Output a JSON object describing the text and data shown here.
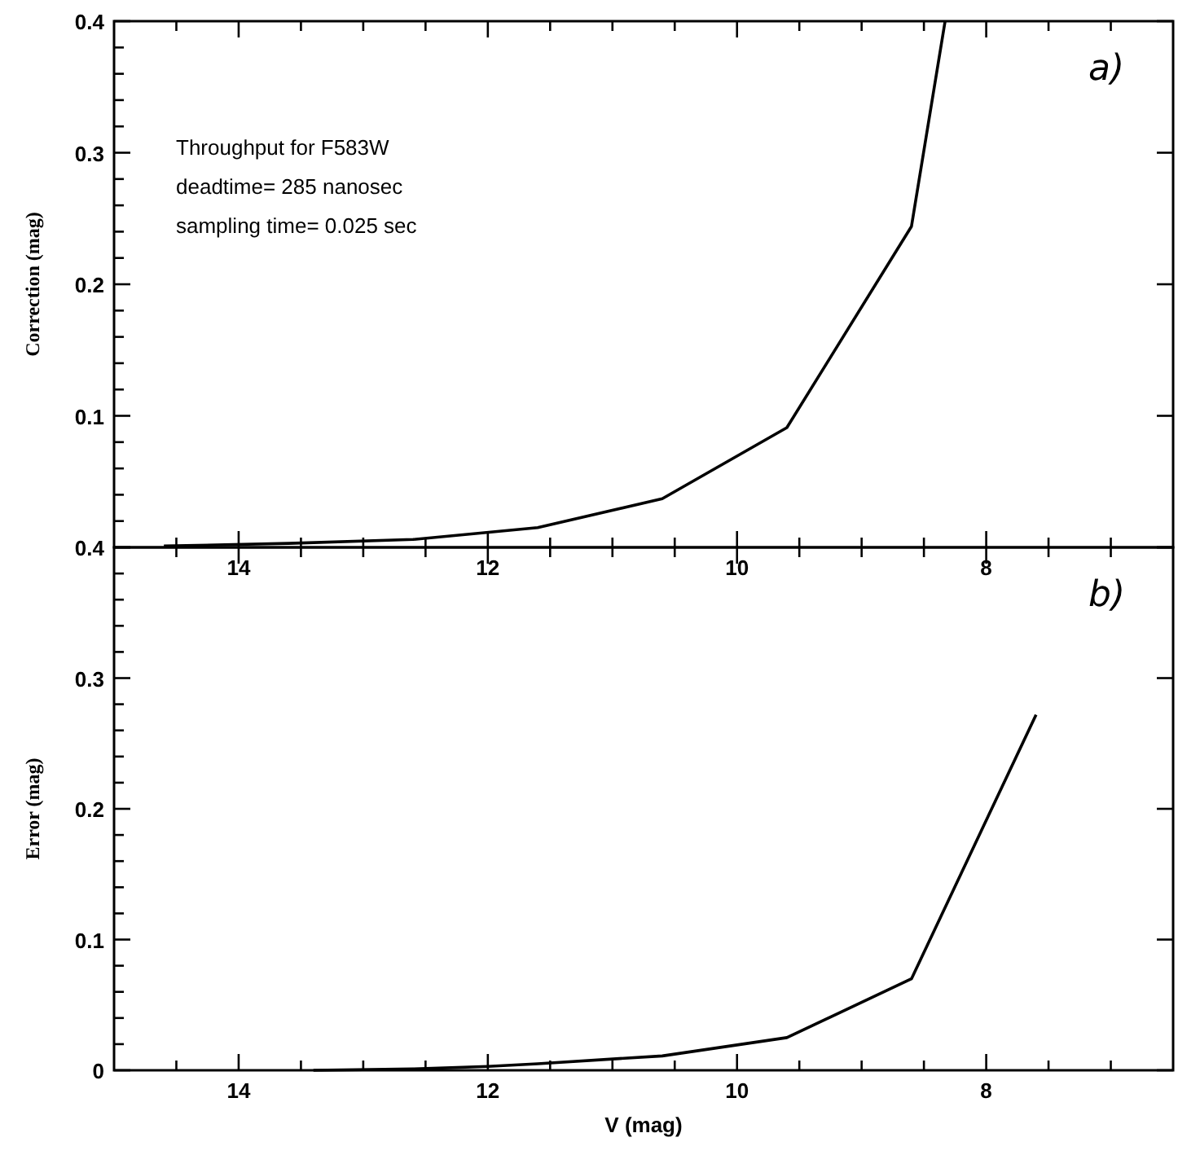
{
  "chart_data": [
    {
      "type": "line",
      "ylabel": "Correction (mag)",
      "xlim": [
        15,
        6.5
      ],
      "ylim": [
        0,
        0.4
      ],
      "xticks": [
        14,
        12,
        10,
        8,
        {
          "value": 14.5,
          "label": null
        },
        {
          "value": 13.5,
          "label": null
        },
        {
          "value": 13,
          "label": null
        },
        {
          "value": 12.5,
          "label": null
        },
        {
          "value": 11.5,
          "label": null
        },
        {
          "value": 11,
          "label": null
        },
        {
          "value": 10.5,
          "label": null
        },
        {
          "value": 9.5,
          "label": null
        },
        {
          "value": 9,
          "label": null
        },
        {
          "value": 8.5,
          "label": null
        },
        {
          "value": 7.5,
          "label": null
        },
        {
          "value": 7,
          "label": null
        }
      ],
      "yticks": [
        {
          "value": 0,
          "label": null
        },
        0.1,
        0.2,
        0.3,
        0.4,
        {
          "value": 0.02,
          "label": null
        },
        {
          "value": 0.04,
          "label": null
        },
        {
          "value": 0.06,
          "label": null
        },
        {
          "value": 0.08,
          "label": null
        },
        {
          "value": 0.12,
          "label": null
        },
        {
          "value": 0.14,
          "label": null
        },
        {
          "value": 0.16,
          "label": null
        },
        {
          "value": 0.18,
          "label": null
        },
        {
          "value": 0.22,
          "label": null
        },
        {
          "value": 0.24,
          "label": null
        },
        {
          "value": 0.26,
          "label": null
        },
        {
          "value": 0.28,
          "label": null
        },
        {
          "value": 0.32,
          "label": null
        },
        {
          "value": 0.34,
          "label": null
        },
        {
          "value": 0.36,
          "label": null
        },
        {
          "value": 0.38,
          "label": null
        }
      ],
      "x": [
        14.6,
        13.6,
        12.6,
        11.6,
        10.6,
        9.6,
        8.6,
        8.33
      ],
      "series": [
        {
          "color": "#000000",
          "values": [
            0.001,
            0.003,
            0.006,
            0.015,
            0.037,
            0.091,
            0.244,
            0.4
          ]
        }
      ],
      "grid": false,
      "marker": "none",
      "line_style": "solid",
      "annotations": [
        "Throughput for F583W",
        "deadtime= 285 nanosec",
        "sampling time= 0.025 sec",
        "a)"
      ]
    },
    {
      "type": "line",
      "xlabel": "V (mag)",
      "ylabel": "Error (mag)",
      "xlim": [
        15,
        6.5
      ],
      "ylim": [
        0,
        0.4
      ],
      "xticks": [
        14,
        12,
        10,
        8,
        {
          "value": 14.5,
          "label": null
        },
        {
          "value": 13.5,
          "label": null
        },
        {
          "value": 13,
          "label": null
        },
        {
          "value": 12.5,
          "label": null
        },
        {
          "value": 11.5,
          "label": null
        },
        {
          "value": 11,
          "label": null
        },
        {
          "value": 10.5,
          "label": null
        },
        {
          "value": 9.5,
          "label": null
        },
        {
          "value": 9,
          "label": null
        },
        {
          "value": 8.5,
          "label": null
        },
        {
          "value": 7.5,
          "label": null
        },
        {
          "value": 7,
          "label": null
        }
      ],
      "yticks": [
        0,
        0.1,
        0.2,
        0.3,
        0.4,
        {
          "value": 0.02,
          "label": null
        },
        {
          "value": 0.04,
          "label": null
        },
        {
          "value": 0.06,
          "label": null
        },
        {
          "value": 0.08,
          "label": null
        },
        {
          "value": 0.12,
          "label": null
        },
        {
          "value": 0.14,
          "label": null
        },
        {
          "value": 0.16,
          "label": null
        },
        {
          "value": 0.18,
          "label": null
        },
        {
          "value": 0.22,
          "label": null
        },
        {
          "value": 0.24,
          "label": null
        },
        {
          "value": 0.26,
          "label": null
        },
        {
          "value": 0.28,
          "label": null
        },
        {
          "value": 0.32,
          "label": null
        },
        {
          "value": 0.34,
          "label": null
        },
        {
          "value": 0.36,
          "label": null
        },
        {
          "value": 0.38,
          "label": null
        }
      ],
      "x": [
        13.4,
        12.6,
        12,
        11.6,
        10.6,
        9.6,
        8.6,
        7.6
      ],
      "series": [
        {
          "color": "#000000",
          "values": [
            0,
            0.001,
            0.003,
            0.005,
            0.011,
            0.025,
            0.07,
            0.272
          ]
        }
      ],
      "grid": false,
      "marker": "none",
      "line_style": "solid",
      "annotations": [
        "b)"
      ]
    }
  ]
}
